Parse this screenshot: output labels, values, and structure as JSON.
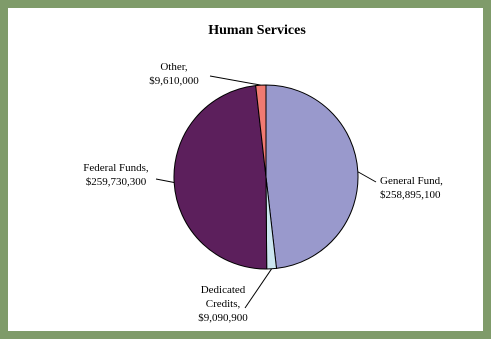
{
  "chart_data": {
    "type": "pie",
    "title": "Human Services",
    "slices": [
      {
        "label_lines": [
          "General Fund,",
          "$258,895,100"
        ],
        "value": 258895100,
        "color": "#9999cc"
      },
      {
        "label_lines": [
          "Dedicated",
          "Credits,",
          "$9,090,900"
        ],
        "value": 9090900,
        "color": "#cce6f0"
      },
      {
        "label_lines": [
          "Federal Funds,",
          "$259,730,300"
        ],
        "value": 259730300,
        "color": "#5c1f5c"
      },
      {
        "label_lines": [
          "Other,",
          "$9,610,000"
        ],
        "value": 9610000,
        "color": "#f07a72"
      }
    ],
    "start": "12 o'clock",
    "direction": "clockwise",
    "legend": "none",
    "border_color": "#7f9b6a"
  }
}
